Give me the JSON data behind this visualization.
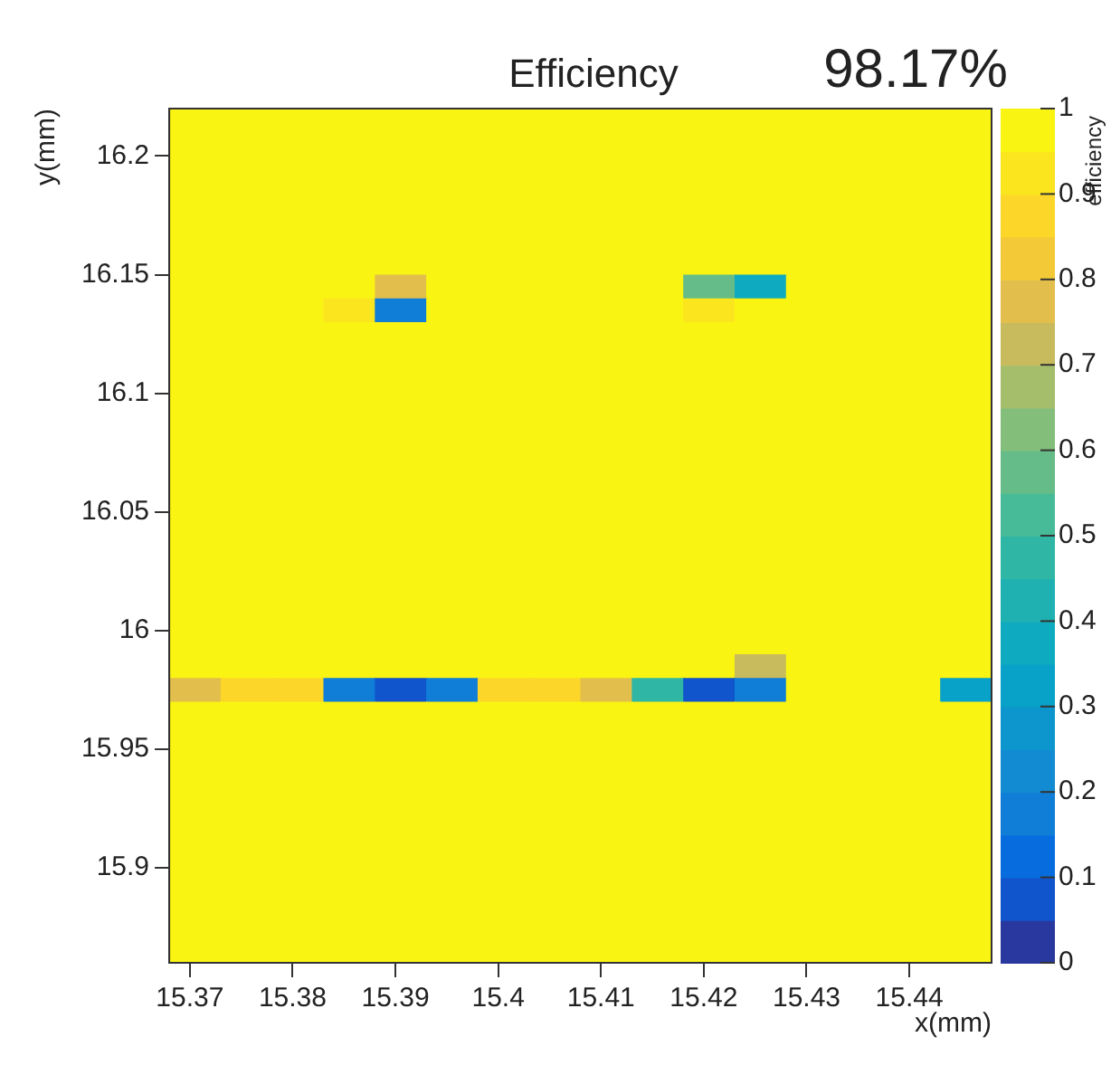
{
  "chart_data": {
    "type": "heatmap",
    "title": "Efficiency",
    "annotations": [
      "98.17%"
    ],
    "xlabel": "x(mm)",
    "ylabel": "y(mm)",
    "clabel": "efficiency",
    "x": [
      15.3705,
      15.3755,
      15.3805,
      15.3855,
      15.3905,
      15.3955,
      15.4005,
      15.4055,
      15.4105,
      15.4155,
      15.4205,
      15.4255,
      15.4305,
      15.4355,
      15.4405,
      15.4455
    ],
    "y": [
      16.215,
      16.205,
      16.195,
      16.185,
      16.175,
      16.165,
      16.155,
      16.145,
      16.135,
      16.125,
      16.115,
      16.105,
      16.095,
      16.085,
      16.075,
      16.065,
      16.055,
      16.045,
      16.035,
      16.025,
      16.015,
      16.005,
      15.995,
      15.985,
      15.975,
      15.965,
      15.955,
      15.945,
      15.935,
      15.925,
      15.915,
      15.905,
      15.895,
      15.885,
      15.875,
      15.865
    ],
    "xlim": [
      15.368,
      15.448
    ],
    "xticks": [
      15.37,
      15.38,
      15.39,
      15.4,
      15.41,
      15.42,
      15.43,
      15.44
    ],
    "ylim": [
      15.86,
      16.22
    ],
    "yticks": [
      15.9,
      15.95,
      16,
      16.05,
      16.1,
      16.15,
      16.2
    ],
    "clim": [
      0,
      1
    ],
    "cticks": [
      0,
      0.1,
      0.2,
      0.3,
      0.4,
      0.5,
      0.6,
      0.7,
      0.8,
      0.9,
      1
    ],
    "cells": [
      [
        1,
        1,
        1,
        1,
        1,
        1,
        1,
        1,
        1,
        1,
        1,
        1,
        1,
        1,
        1,
        1
      ],
      [
        1,
        1,
        1,
        1,
        1,
        1,
        1,
        1,
        1,
        1,
        1,
        1,
        1,
        1,
        1,
        1
      ],
      [
        1,
        1,
        1,
        1,
        1,
        1,
        1,
        1,
        1,
        1,
        1,
        1,
        1,
        1,
        1,
        1
      ],
      [
        1,
        1,
        1,
        1,
        1,
        1,
        1,
        1,
        1,
        1,
        1,
        1,
        1,
        1,
        1,
        1
      ],
      [
        1,
        1,
        1,
        1,
        1,
        1,
        1,
        1,
        1,
        1,
        1,
        1,
        1,
        1,
        1,
        1
      ],
      [
        1,
        1,
        1,
        1,
        1,
        1,
        1,
        1,
        1,
        1,
        1,
        1,
        1,
        1,
        1,
        1
      ],
      [
        1,
        1,
        1,
        1,
        1,
        1,
        1,
        1,
        1,
        1,
        1,
        1,
        1,
        1,
        1,
        1
      ],
      [
        1,
        1,
        1,
        1,
        0.75,
        1,
        1,
        1,
        1,
        1,
        0.55,
        0.35,
        1,
        1,
        1,
        1
      ],
      [
        1,
        1,
        1,
        0.9,
        0.15,
        1,
        1,
        1,
        1,
        1,
        0.9,
        1,
        1,
        1,
        1,
        1
      ],
      [
        1,
        1,
        1,
        1,
        1,
        1,
        1,
        1,
        1,
        1,
        1,
        1,
        1,
        1,
        1,
        1
      ],
      [
        1,
        1,
        1,
        1,
        1,
        1,
        1,
        1,
        1,
        1,
        1,
        1,
        1,
        1,
        1,
        1
      ],
      [
        1,
        1,
        1,
        1,
        1,
        1,
        1,
        1,
        1,
        1,
        1,
        1,
        1,
        1,
        1,
        1
      ],
      [
        1,
        1,
        1,
        1,
        1,
        1,
        1,
        1,
        1,
        1,
        1,
        1,
        1,
        1,
        1,
        1
      ],
      [
        1,
        1,
        1,
        1,
        1,
        1,
        1,
        1,
        1,
        1,
        1,
        1,
        1,
        1,
        1,
        1
      ],
      [
        1,
        1,
        1,
        1,
        1,
        1,
        1,
        1,
        1,
        1,
        1,
        1,
        1,
        1,
        1,
        1
      ],
      [
        1,
        1,
        1,
        1,
        1,
        1,
        1,
        1,
        1,
        1,
        1,
        1,
        1,
        1,
        1,
        1
      ],
      [
        1,
        1,
        1,
        1,
        1,
        1,
        1,
        1,
        1,
        1,
        1,
        1,
        1,
        1,
        1,
        1
      ],
      [
        1,
        1,
        1,
        1,
        1,
        1,
        1,
        1,
        1,
        1,
        1,
        1,
        1,
        1,
        1,
        1
      ],
      [
        1,
        1,
        1,
        1,
        1,
        1,
        1,
        1,
        1,
        1,
        1,
        1,
        1,
        1,
        1,
        1
      ],
      [
        1,
        1,
        1,
        1,
        1,
        1,
        1,
        1,
        1,
        1,
        1,
        1,
        1,
        1,
        1,
        1
      ],
      [
        1,
        1,
        1,
        1,
        1,
        1,
        1,
        1,
        1,
        1,
        1,
        1,
        1,
        1,
        1,
        1
      ],
      [
        1,
        1,
        1,
        1,
        1,
        1,
        1,
        1,
        1,
        1,
        1,
        1,
        1,
        1,
        1,
        1
      ],
      [
        1,
        1,
        1,
        1,
        1,
        1,
        1,
        1,
        1,
        1,
        1,
        1,
        1,
        1,
        1,
        1
      ],
      [
        1,
        1,
        1,
        1,
        1,
        1,
        1,
        1,
        1,
        1,
        1,
        0.7,
        1,
        1,
        1,
        1
      ],
      [
        0.75,
        0.85,
        0.85,
        0.15,
        0.05,
        0.15,
        0.85,
        0.85,
        0.75,
        0.45,
        0.05,
        0.15,
        0.95,
        0.95,
        0.95,
        0.3
      ],
      [
        1,
        1,
        1,
        1,
        1,
        1,
        1,
        1,
        1,
        1,
        1,
        1,
        1,
        1,
        1,
        1
      ],
      [
        1,
        1,
        1,
        1,
        1,
        1,
        1,
        1,
        1,
        1,
        1,
        1,
        1,
        1,
        1,
        1
      ],
      [
        1,
        1,
        1,
        1,
        1,
        1,
        1,
        1,
        1,
        1,
        1,
        1,
        1,
        1,
        1,
        1
      ],
      [
        1,
        1,
        1,
        1,
        1,
        1,
        1,
        1,
        1,
        1,
        1,
        1,
        1,
        1,
        1,
        1
      ],
      [
        1,
        1,
        1,
        1,
        1,
        1,
        1,
        1,
        1,
        1,
        1,
        1,
        1,
        1,
        1,
        1
      ],
      [
        1,
        1,
        1,
        1,
        1,
        1,
        1,
        1,
        1,
        1,
        1,
        1,
        1,
        1,
        1,
        1
      ],
      [
        1,
        1,
        1,
        1,
        1,
        1,
        1,
        1,
        1,
        1,
        1,
        1,
        1,
        1,
        1,
        1
      ],
      [
        1,
        1,
        1,
        1,
        1,
        1,
        1,
        1,
        1,
        1,
        1,
        1,
        1,
        1,
        1,
        1
      ],
      [
        1,
        1,
        1,
        1,
        1,
        1,
        1,
        1,
        1,
        1,
        1,
        1,
        1,
        1,
        1,
        1
      ],
      [
        1,
        1,
        1,
        1,
        1,
        1,
        1,
        1,
        1,
        1,
        1,
        1,
        1,
        1,
        1,
        1
      ],
      [
        1,
        1,
        1,
        1,
        1,
        1,
        1,
        1,
        1,
        1,
        1,
        1,
        1,
        1,
        1,
        1
      ]
    ]
  }
}
